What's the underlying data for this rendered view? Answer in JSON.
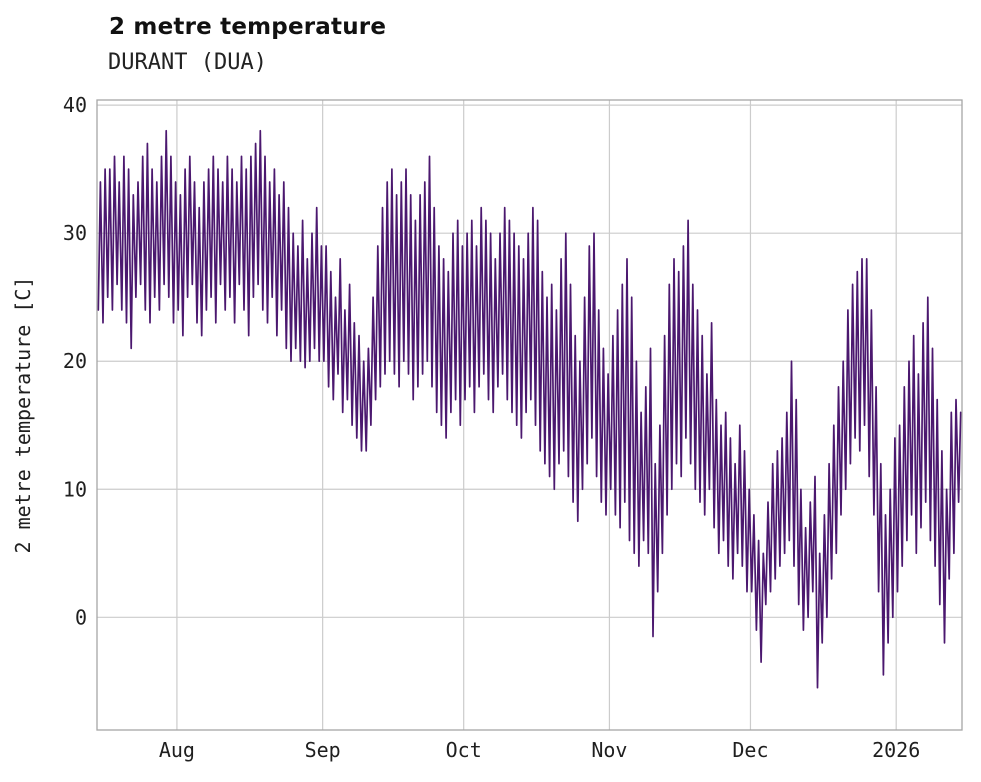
{
  "chart_data": {
    "type": "line",
    "title": "2 metre temperature",
    "subtitle": "DURANT (DUA)",
    "ylabel": "2 metre temperature [C]",
    "xlabel": "",
    "line_color": "#4b186f",
    "grid_color": "#cccccc",
    "border_color": "#a6a6a6",
    "grid": true,
    "legend": "none",
    "x_unit": "days since Jul 15",
    "xlim": [
      0,
      184
    ],
    "ylim": [
      -8.8,
      40.4
    ],
    "yticks": [
      0,
      10,
      20,
      30,
      40
    ],
    "xticks": [
      {
        "pos": 17,
        "label": "Aug"
      },
      {
        "pos": 48,
        "label": "Sep"
      },
      {
        "pos": 78,
        "label": "Oct"
      },
      {
        "pos": 109,
        "label": "Nov"
      },
      {
        "pos": 139,
        "label": "Dec"
      },
      {
        "pos": 170,
        "label": "2026"
      }
    ],
    "series": [
      {
        "name": "2 metre temperature",
        "unit": "C",
        "sampling": "daily_min_max",
        "daily_min_max": [
          [
            24,
            34
          ],
          [
            23,
            35
          ],
          [
            25,
            35
          ],
          [
            24,
            36
          ],
          [
            26,
            34
          ],
          [
            24,
            36
          ],
          [
            23,
            35
          ],
          [
            21,
            33
          ],
          [
            25,
            34
          ],
          [
            26,
            36
          ],
          [
            24,
            37
          ],
          [
            23,
            35
          ],
          [
            25,
            34
          ],
          [
            24,
            36
          ],
          [
            26,
            38
          ],
          [
            25,
            36
          ],
          [
            23,
            34
          ],
          [
            24,
            33
          ],
          [
            22,
            35
          ],
          [
            25,
            36
          ],
          [
            26,
            34
          ],
          [
            23,
            32
          ],
          [
            22,
            34
          ],
          [
            24,
            35
          ],
          [
            25,
            36
          ],
          [
            23,
            35
          ],
          [
            26,
            34
          ],
          [
            24,
            36
          ],
          [
            25,
            35
          ],
          [
            23,
            34
          ],
          [
            26,
            36
          ],
          [
            24,
            35
          ],
          [
            22,
            36
          ],
          [
            25,
            37
          ],
          [
            26,
            38
          ],
          [
            24,
            36
          ],
          [
            23,
            34
          ],
          [
            25,
            35
          ],
          [
            22,
            33
          ],
          [
            24,
            34
          ],
          [
            21,
            32
          ],
          [
            20,
            30
          ],
          [
            21,
            29
          ],
          [
            20,
            31
          ],
          [
            19.5,
            28
          ],
          [
            20,
            30
          ],
          [
            21,
            32
          ],
          [
            20,
            29
          ],
          [
            20,
            29
          ],
          [
            18,
            27
          ],
          [
            17,
            25
          ],
          [
            19,
            28
          ],
          [
            16,
            24
          ],
          [
            17,
            26
          ],
          [
            15,
            23
          ],
          [
            14,
            22
          ],
          [
            13,
            20
          ],
          [
            13,
            21
          ],
          [
            15,
            25
          ],
          [
            17,
            29
          ],
          [
            18,
            32
          ],
          [
            19,
            34
          ],
          [
            20,
            35
          ],
          [
            19,
            33
          ],
          [
            18,
            34
          ],
          [
            20,
            35
          ],
          [
            19,
            33
          ],
          [
            17,
            31
          ],
          [
            18,
            33
          ],
          [
            19,
            34
          ],
          [
            20,
            36
          ],
          [
            18,
            32
          ],
          [
            16,
            29
          ],
          [
            15,
            28
          ],
          [
            14,
            27
          ],
          [
            16,
            30
          ],
          [
            17,
            31
          ],
          [
            15,
            29
          ],
          [
            17,
            30
          ],
          [
            18,
            31
          ],
          [
            16,
            29
          ],
          [
            18,
            32
          ],
          [
            19,
            31
          ],
          [
            17,
            30
          ],
          [
            16,
            28
          ],
          [
            18,
            30
          ],
          [
            19,
            32
          ],
          [
            17,
            31
          ],
          [
            16,
            30
          ],
          [
            15,
            29
          ],
          [
            14,
            28
          ],
          [
            16,
            30
          ],
          [
            17,
            32
          ],
          [
            15,
            31
          ],
          [
            13,
            27
          ],
          [
            12,
            25
          ],
          [
            11,
            26
          ],
          [
            10,
            24
          ],
          [
            12,
            28
          ],
          [
            13,
            30
          ],
          [
            11,
            26
          ],
          [
            9,
            22
          ],
          [
            7.5,
            20
          ],
          [
            10,
            25
          ],
          [
            12,
            29
          ],
          [
            14,
            30
          ],
          [
            11,
            24
          ],
          [
            9,
            21
          ],
          [
            8,
            19
          ],
          [
            10,
            22
          ],
          [
            8,
            24
          ],
          [
            7,
            26
          ],
          [
            9,
            28
          ],
          [
            6,
            25
          ],
          [
            5,
            20
          ],
          [
            4,
            16
          ],
          [
            6,
            18
          ],
          [
            5,
            21
          ],
          [
            -1.5,
            12
          ],
          [
            2,
            15
          ],
          [
            5,
            22
          ],
          [
            8,
            26
          ],
          [
            10,
            28
          ],
          [
            12,
            27
          ],
          [
            11,
            29
          ],
          [
            14,
            31
          ],
          [
            12,
            26
          ],
          [
            10,
            24
          ],
          [
            9,
            22
          ],
          [
            8,
            19
          ],
          [
            10,
            23
          ],
          [
            7,
            17
          ],
          [
            5,
            15
          ],
          [
            6,
            16
          ],
          [
            4,
            14
          ],
          [
            3,
            12
          ],
          [
            5,
            15
          ],
          [
            4,
            13
          ],
          [
            2,
            10
          ],
          [
            2,
            8
          ],
          [
            -1,
            6
          ],
          [
            -3.5,
            5
          ],
          [
            1,
            9
          ],
          [
            2,
            12
          ],
          [
            3,
            13
          ],
          [
            4,
            14
          ],
          [
            5,
            16
          ],
          [
            6,
            20
          ],
          [
            4,
            17
          ],
          [
            1,
            10
          ],
          [
            -1,
            7
          ],
          [
            0,
            9
          ],
          [
            2,
            11
          ],
          [
            -5.5,
            5
          ],
          [
            -2,
            8
          ],
          [
            0,
            12
          ],
          [
            3,
            15
          ],
          [
            5,
            18
          ],
          [
            8,
            20
          ],
          [
            10,
            24
          ],
          [
            12,
            26
          ],
          [
            14,
            27
          ],
          [
            13,
            28
          ],
          [
            15,
            28
          ],
          [
            11,
            24
          ],
          [
            8,
            18
          ],
          [
            2,
            12
          ],
          [
            -4.5,
            8
          ],
          [
            -2,
            10
          ],
          [
            0,
            14
          ],
          [
            2,
            15
          ],
          [
            4,
            18
          ],
          [
            6,
            20
          ],
          [
            8,
            22
          ],
          [
            5,
            19
          ],
          [
            7,
            23
          ],
          [
            9,
            25
          ],
          [
            6,
            21
          ],
          [
            4,
            17
          ],
          [
            1,
            13
          ],
          [
            -2,
            10
          ],
          [
            3,
            16
          ],
          [
            5,
            17
          ],
          [
            9,
            16
          ]
        ]
      }
    ]
  }
}
